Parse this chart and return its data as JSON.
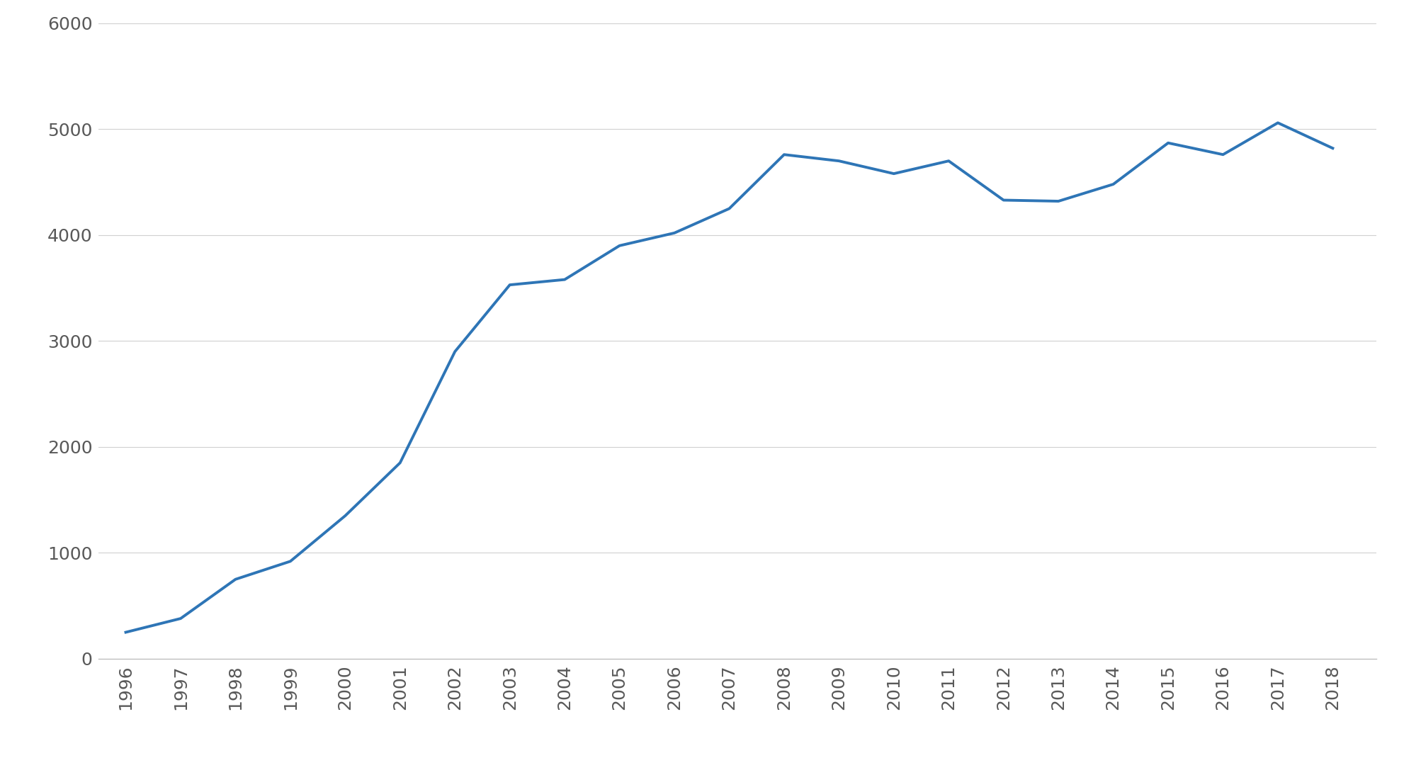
{
  "years": [
    1996,
    1997,
    1998,
    1999,
    2000,
    2001,
    2002,
    2003,
    2004,
    2005,
    2006,
    2007,
    2008,
    2009,
    2010,
    2011,
    2012,
    2013,
    2014,
    2015,
    2016,
    2017,
    2018
  ],
  "values": [
    250,
    380,
    750,
    920,
    1350,
    1850,
    2900,
    3530,
    3580,
    3900,
    4020,
    4250,
    4760,
    4700,
    4580,
    4700,
    4330,
    4320,
    4480,
    4870,
    4760,
    5060,
    4820
  ],
  "line_color": "#2E75B6",
  "line_width": 2.8,
  "background_color": "#FFFFFF",
  "grid_color": "#D0D0D0",
  "ylim": [
    0,
    6000
  ],
  "yticks": [
    0,
    1000,
    2000,
    3000,
    4000,
    5000,
    6000
  ],
  "tick_label_color": "#595959",
  "tick_label_fontsize": 18,
  "axis_line_color": "#BFBFBF",
  "xlim_left": 1995.5,
  "xlim_right": 2018.8
}
